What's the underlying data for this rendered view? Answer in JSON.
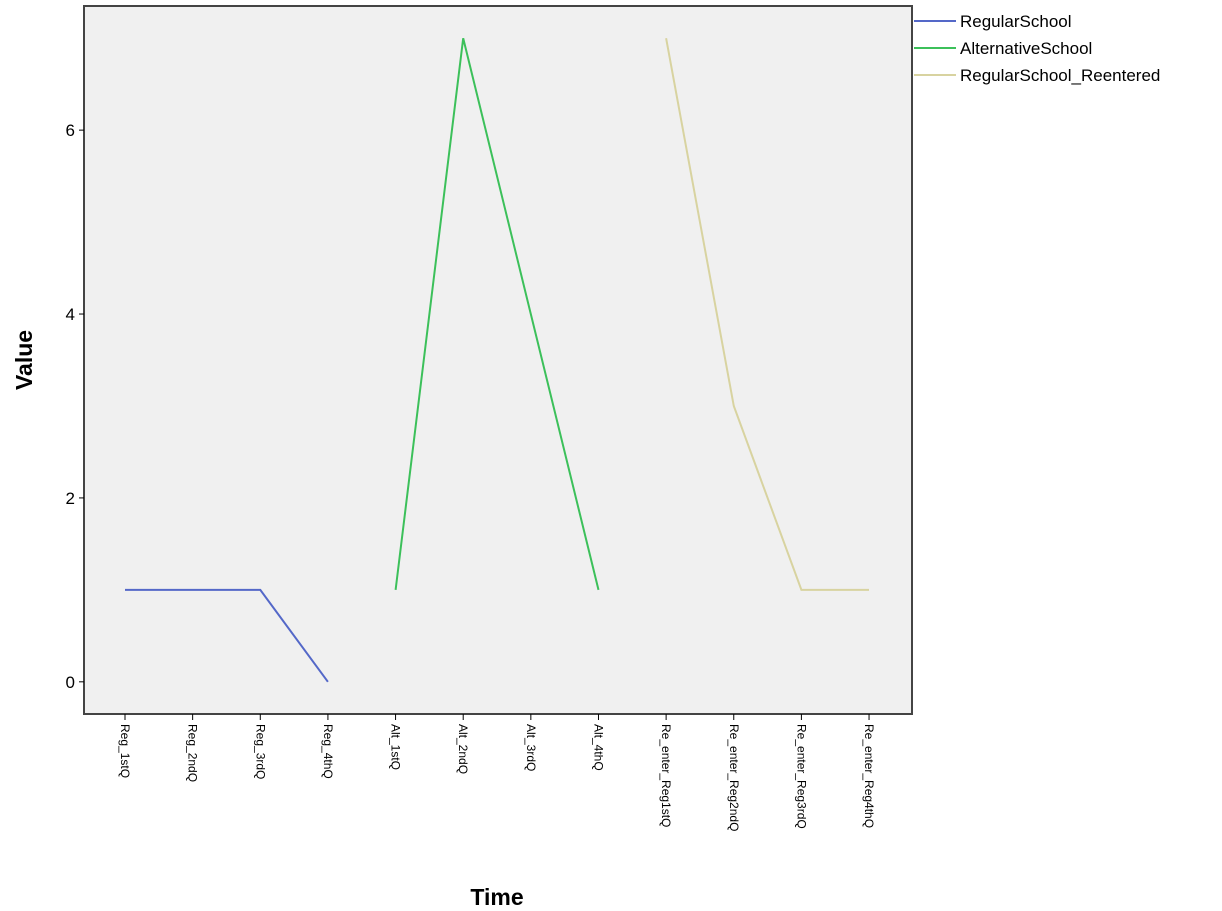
{
  "chart_data": {
    "type": "line",
    "xlabel": "Time",
    "ylabel": "Value",
    "categories": [
      "Reg_1stQ",
      "Reg_2ndQ",
      "Reg_3rdQ",
      "Reg_4thQ",
      "Alt_1stQ",
      "Alt_2ndQ",
      "Alt_3rdQ",
      "Alt_4thQ",
      "Re_enter_Reg1stQ",
      "Re_enter_Reg2ndQ",
      "Re_enter_Reg3rdQ",
      "Re_enter_Reg4thQ"
    ],
    "yticks": [
      "0",
      "2",
      "4",
      "6"
    ],
    "ylim": [
      -0.35,
      7.35
    ],
    "grid": false,
    "legend_position": "right, outside plot area",
    "series": [
      {
        "name": "RegularSchool",
        "color": "#5468c8",
        "values": [
          1,
          1,
          1,
          0,
          null,
          null,
          null,
          null,
          null,
          null,
          null,
          null
        ]
      },
      {
        "name": "AlternativeSchool",
        "color": "#3cc05a",
        "values": [
          null,
          null,
          null,
          null,
          1,
          7,
          4,
          1,
          null,
          null,
          null,
          null
        ]
      },
      {
        "name": "RegularSchool_Reentered",
        "color": "#d8d3a0",
        "values": [
          null,
          null,
          null,
          null,
          null,
          null,
          null,
          null,
          7,
          3,
          1,
          1
        ]
      }
    ]
  }
}
